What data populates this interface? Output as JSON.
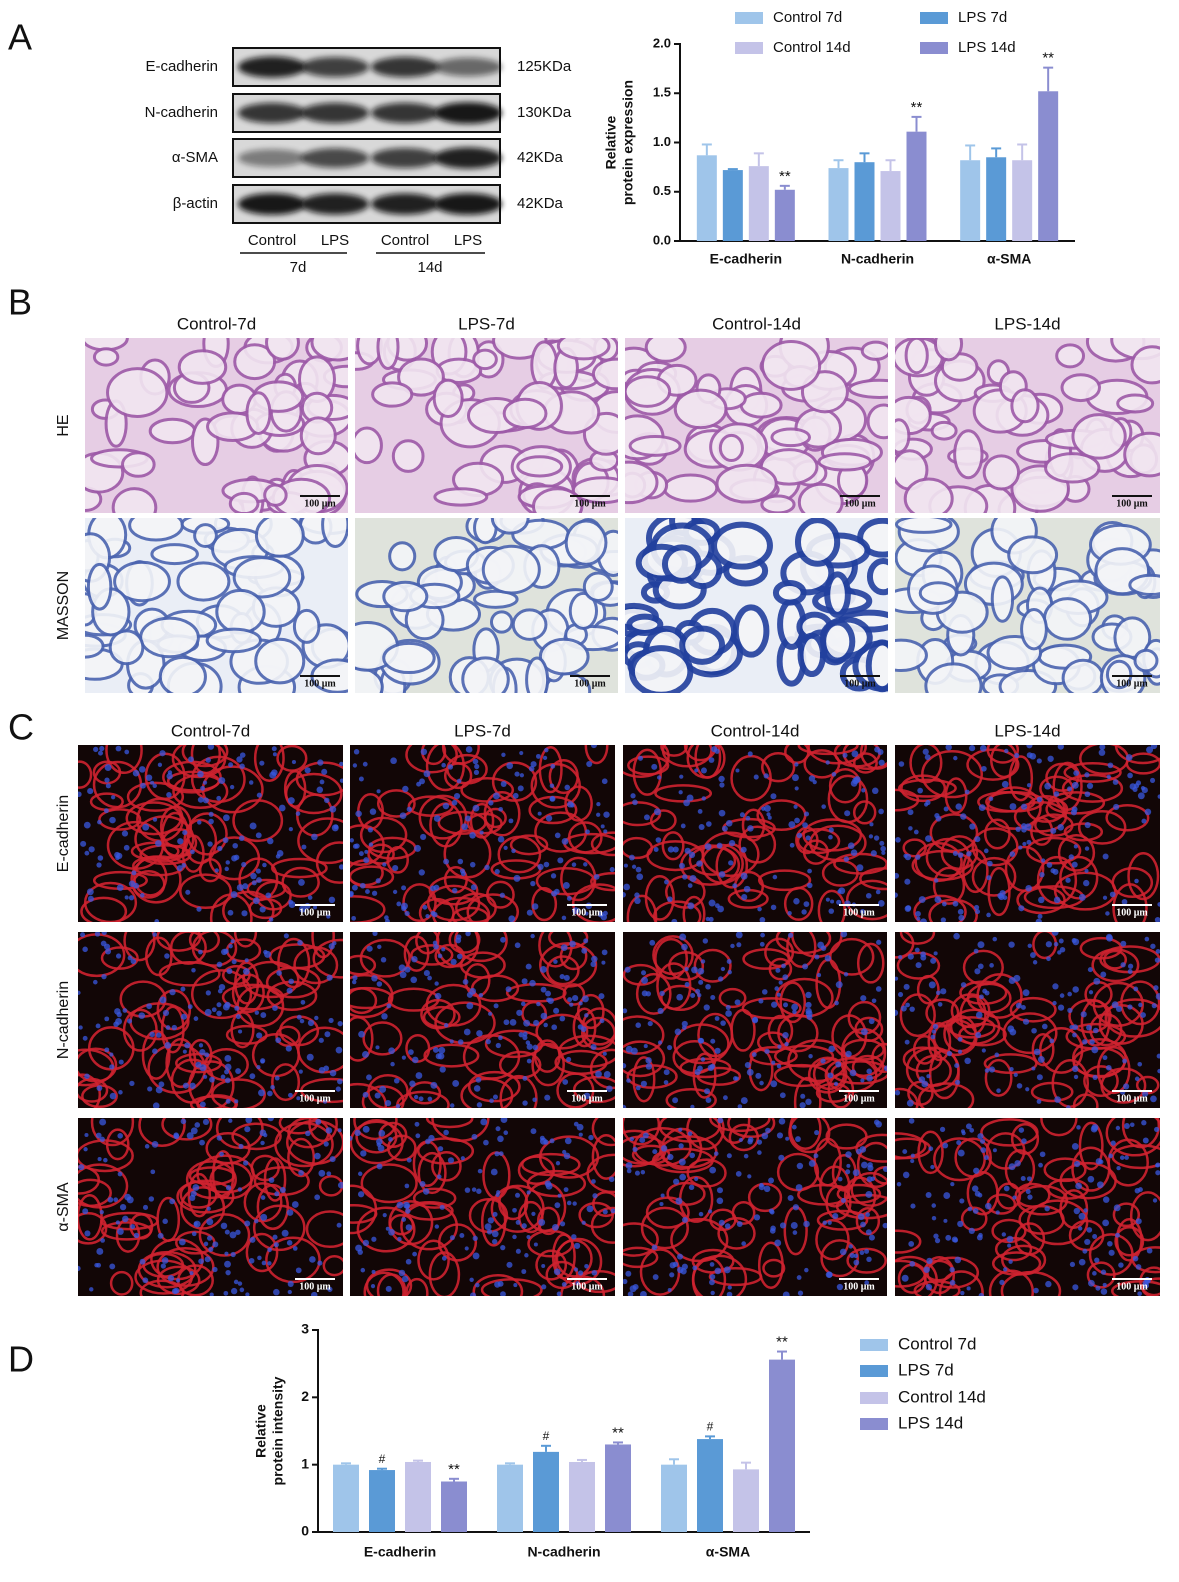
{
  "panel_labels": [
    "A",
    "B",
    "C",
    "D"
  ],
  "blot": {
    "proteins": [
      "E-cadherin",
      "N-cadherin",
      "α-SMA",
      "β-actin"
    ],
    "sizes": [
      "125KDa",
      "130KDa",
      "42KDa",
      "42KDa"
    ],
    "lanes": [
      "Control",
      "LPS",
      "Control",
      "LPS"
    ],
    "groups": [
      "7d",
      "14d"
    ]
  },
  "chart_data": [
    {
      "type": "bar",
      "y_label": [
        "Relative",
        "protein expression"
      ],
      "categories": [
        "E-cadherin",
        "N-cadherin",
        "α-SMA"
      ],
      "series": [
        {
          "name": "Control 7d",
          "color": "#9fc5ea",
          "values": [
            0.87,
            0.74,
            0.82
          ],
          "errors": [
            0.11,
            0.08,
            0.15
          ]
        },
        {
          "name": "LPS 7d",
          "color": "#5a9ad6",
          "values": [
            0.72,
            0.8,
            0.85
          ],
          "errors": [
            0.01,
            0.09,
            0.09
          ]
        },
        {
          "name": "Control 14d",
          "color": "#c4c3e8",
          "values": [
            0.76,
            0.71,
            0.82
          ],
          "errors": [
            0.13,
            0.11,
            0.16
          ]
        },
        {
          "name": "LPS 14d",
          "color": "#8a8dd0",
          "values": [
            0.52,
            1.11,
            1.52
          ],
          "errors": [
            0.04,
            0.15,
            0.24
          ],
          "annotations": [
            "**",
            "**",
            "**"
          ]
        }
      ],
      "ylim": [
        0,
        2
      ],
      "yticks": [
        {
          "value": 0,
          "label": "0.0"
        },
        {
          "value": 0.5,
          "label": "0.5"
        },
        {
          "value": 1,
          "label": "1.0"
        },
        {
          "value": 1.5,
          "label": "1.5"
        },
        {
          "value": 2,
          "label": "2.0"
        }
      ],
      "legend": "top"
    },
    {
      "type": "bar",
      "y_label": [
        "Relative",
        "protein intensity"
      ],
      "categories": [
        "E-cadherin",
        "N-cadherin",
        "α-SMA"
      ],
      "series": [
        {
          "name": "Control 7d",
          "color": "#9fc5ea",
          "values": [
            1.0,
            1.0,
            1.0
          ],
          "errors": [
            0.02,
            0.02,
            0.08
          ]
        },
        {
          "name": "LPS 7d",
          "color": "#5a9ad6",
          "values": [
            0.92,
            1.19,
            1.38
          ],
          "errors": [
            0.02,
            0.09,
            0.04
          ],
          "annotations": [
            "#",
            "#",
            "#"
          ]
        },
        {
          "name": "Control 14d",
          "color": "#c4c3e8",
          "values": [
            1.04,
            1.04,
            0.93
          ],
          "errors": [
            0.02,
            0.03,
            0.1
          ]
        },
        {
          "name": "LPS 14d",
          "color": "#8a8dd0",
          "values": [
            0.75,
            1.3,
            2.56
          ],
          "errors": [
            0.04,
            0.03,
            0.12
          ],
          "annotations": [
            "**",
            "**",
            "**"
          ]
        }
      ],
      "ylim": [
        0,
        3
      ],
      "yticks": [
        0,
        1,
        2,
        3
      ],
      "legend": "right"
    }
  ],
  "histology": {
    "columns": [
      "Control-7d",
      "LPS-7d",
      "Control-14d",
      "LPS-14d"
    ],
    "rows": [
      "HE",
      "MASSON"
    ],
    "scale_bar": "100 μm"
  },
  "immunofluorescence": {
    "columns": [
      "Control-7d",
      "LPS-7d",
      "Control-14d",
      "LPS-14d"
    ],
    "rows": [
      "E-cadherin",
      "N-cadherin",
      "α-SMA"
    ],
    "scale_bar": "100 μm"
  }
}
